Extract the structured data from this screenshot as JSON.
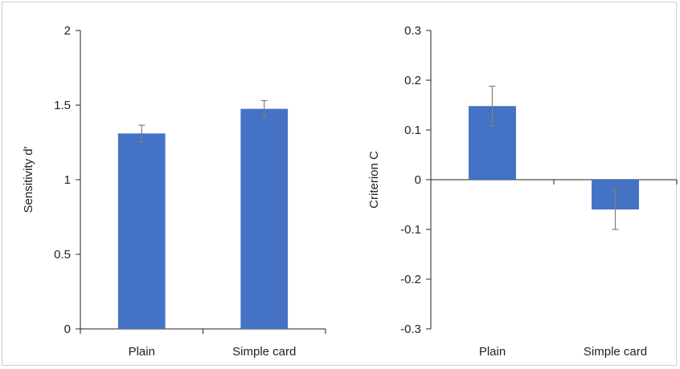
{
  "chart_data": [
    {
      "type": "bar",
      "categories": [
        "Plain",
        "Simple card"
      ],
      "values": [
        1.31,
        1.475
      ],
      "errors": [
        0.055,
        0.055
      ],
      "ylabel": "Sensitivity d'",
      "xlabel": "",
      "title": "",
      "ylim": [
        0,
        2
      ],
      "yticks": [
        0,
        0.5,
        1,
        1.5,
        2
      ],
      "ytick_labels": [
        "0",
        "0.5",
        "1",
        "1.5",
        "2"
      ],
      "grid": false,
      "bar_color": "#4472c4"
    },
    {
      "type": "bar",
      "categories": [
        "Plain",
        "Simple card"
      ],
      "values": [
        0.148,
        -0.06
      ],
      "errors": [
        0.04,
        0.04
      ],
      "ylabel": "Criterion C",
      "xlabel": "",
      "title": "",
      "ylim": [
        -0.3,
        0.3
      ],
      "yticks": [
        -0.3,
        -0.2,
        -0.1,
        0,
        0.1,
        0.2,
        0.3
      ],
      "ytick_labels": [
        "-0.3",
        "-0.2",
        "-0.1",
        "0",
        "0.1",
        "0.2",
        "0.3"
      ],
      "grid": false,
      "bar_color": "#4472c4"
    }
  ]
}
